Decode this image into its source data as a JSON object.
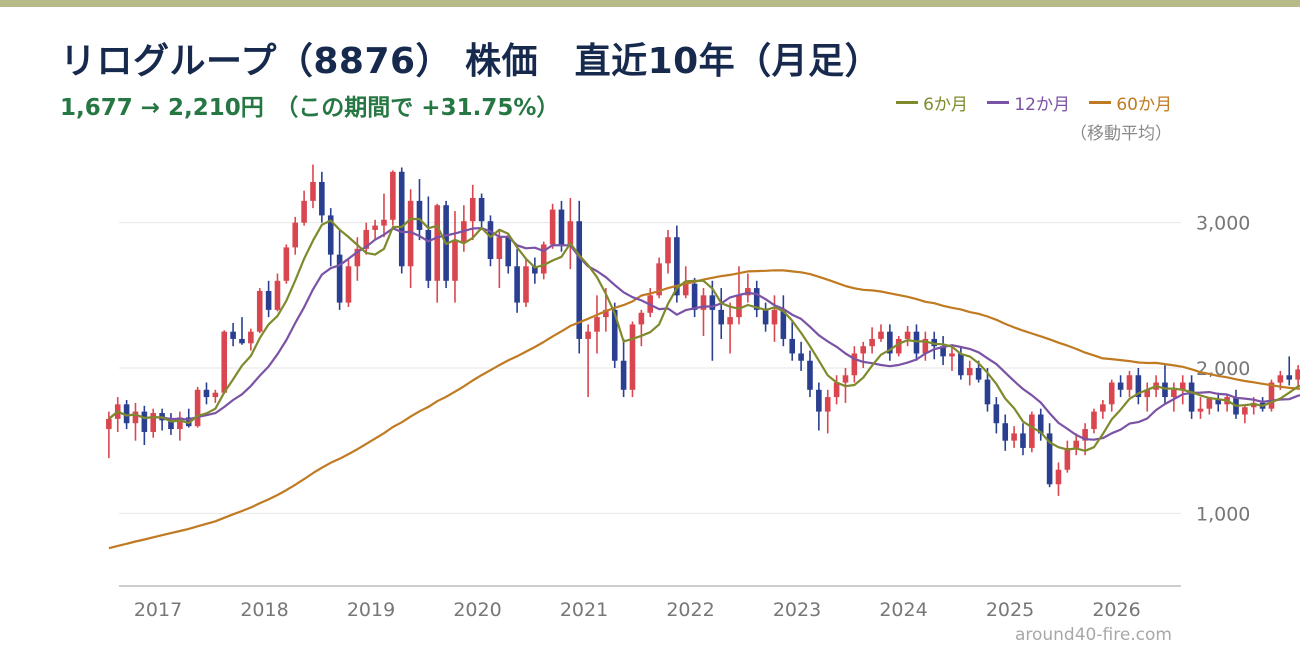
{
  "header": {
    "title": "リログループ（8876） 株価　直近10年（月足）",
    "subtitle": "1,677 → 2,210円　（この期間で +31.75%）"
  },
  "legend": {
    "items": [
      {
        "label": "6か月",
        "color": "#7f8a2c"
      },
      {
        "label": "12か月",
        "color": "#7a52a6"
      },
      {
        "label": "60か月",
        "color": "#c07a22"
      }
    ],
    "note": "（移動平均）"
  },
  "watermark": "around40-fire.com",
  "colors": {
    "up": "#d9464f",
    "down": "#2a3f8f",
    "background": "#ffffff",
    "topbar": "#b8bb88"
  },
  "chart_data": {
    "type": "candlestick",
    "title": "リログループ（8876） 株価　直近10年（月足）",
    "ylim": [
      500,
      3500
    ],
    "y_ticks": [
      1000,
      2000,
      3000
    ],
    "y_tick_labels": [
      "1,000",
      "2,000",
      "3,000"
    ],
    "x_labels": [
      "2017",
      "2018",
      "2019",
      "2020",
      "2021",
      "2022",
      "2023",
      "2024",
      "2025",
      "2026"
    ],
    "grid": true,
    "legend_placement": "top-right",
    "first_year": 2016.67,
    "candles": [
      [
        1580,
        1700,
        1380,
        1650
      ],
      [
        1650,
        1800,
        1560,
        1750
      ],
      [
        1750,
        1780,
        1580,
        1620
      ],
      [
        1620,
        1760,
        1500,
        1700
      ],
      [
        1700,
        1740,
        1470,
        1560
      ],
      [
        1560,
        1720,
        1520,
        1690
      ],
      [
        1690,
        1720,
        1570,
        1640
      ],
      [
        1640,
        1690,
        1540,
        1580
      ],
      [
        1580,
        1700,
        1500,
        1660
      ],
      [
        1660,
        1720,
        1590,
        1600
      ],
      [
        1600,
        1870,
        1590,
        1850
      ],
      [
        1850,
        1900,
        1750,
        1800
      ],
      [
        1800,
        1850,
        1760,
        1830
      ],
      [
        1830,
        2260,
        1820,
        2250
      ],
      [
        2250,
        2310,
        2150,
        2200
      ],
      [
        2200,
        2350,
        2160,
        2170
      ],
      [
        2170,
        2270,
        2120,
        2250
      ],
      [
        2250,
        2550,
        2240,
        2530
      ],
      [
        2530,
        2600,
        2350,
        2400
      ],
      [
        2400,
        2650,
        2390,
        2600
      ],
      [
        2600,
        2850,
        2580,
        2830
      ],
      [
        2830,
        3040,
        2780,
        3000
      ],
      [
        3000,
        3220,
        2980,
        3150
      ],
      [
        3150,
        3400,
        3100,
        3280
      ],
      [
        3280,
        3350,
        3000,
        3050
      ],
      [
        3050,
        3100,
        2700,
        2780
      ],
      [
        2780,
        2950,
        2400,
        2450
      ],
      [
        2450,
        2750,
        2420,
        2700
      ],
      [
        2700,
        2900,
        2600,
        2820
      ],
      [
        2820,
        3000,
        2780,
        2950
      ],
      [
        2950,
        3020,
        2880,
        2980
      ],
      [
        2980,
        3200,
        2900,
        3020
      ],
      [
        3020,
        3360,
        2980,
        3350
      ],
      [
        3350,
        3380,
        2650,
        2700
      ],
      [
        2700,
        3230,
        2550,
        3150
      ],
      [
        3150,
        3300,
        2880,
        2950
      ],
      [
        2950,
        3180,
        2550,
        2600
      ],
      [
        2600,
        3130,
        2450,
        3120
      ],
      [
        3120,
        3150,
        2550,
        2600
      ],
      [
        2600,
        3080,
        2450,
        2870
      ],
      [
        2870,
        3120,
        2800,
        3010
      ],
      [
        3010,
        3260,
        2880,
        3170
      ],
      [
        3170,
        3200,
        2950,
        3010
      ],
      [
        3010,
        3050,
        2700,
        2750
      ],
      [
        2750,
        2950,
        2550,
        2900
      ],
      [
        2900,
        2920,
        2650,
        2700
      ],
      [
        2700,
        2820,
        2380,
        2450
      ],
      [
        2450,
        2750,
        2420,
        2700
      ],
      [
        2700,
        2760,
        2580,
        2650
      ],
      [
        2650,
        2870,
        2610,
        2850
      ],
      [
        2850,
        3130,
        2820,
        3090
      ],
      [
        3090,
        3150,
        2800,
        2850
      ],
      [
        2850,
        3170,
        2680,
        3010
      ],
      [
        3010,
        3150,
        2100,
        2200
      ],
      [
        2200,
        2300,
        1800,
        2250
      ],
      [
        2250,
        2500,
        2100,
        2350
      ],
      [
        2350,
        2550,
        2250,
        2400
      ],
      [
        2400,
        2450,
        2000,
        2050
      ],
      [
        2050,
        2200,
        1800,
        1850
      ],
      [
        1850,
        2320,
        1800,
        2300
      ],
      [
        2300,
        2400,
        2150,
        2380
      ],
      [
        2380,
        2550,
        2350,
        2500
      ],
      [
        2500,
        2760,
        2480,
        2720
      ],
      [
        2720,
        2950,
        2650,
        2900
      ],
      [
        2900,
        2980,
        2450,
        2500
      ],
      [
        2500,
        2700,
        2480,
        2580
      ],
      [
        2580,
        2620,
        2350,
        2400
      ],
      [
        2400,
        2550,
        2220,
        2500
      ],
      [
        2500,
        2600,
        2050,
        2400
      ],
      [
        2400,
        2550,
        2200,
        2300
      ],
      [
        2300,
        2450,
        2100,
        2350
      ],
      [
        2350,
        2700,
        2300,
        2500
      ],
      [
        2500,
        2650,
        2450,
        2550
      ],
      [
        2550,
        2600,
        2350,
        2400
      ],
      [
        2400,
        2450,
        2250,
        2300
      ],
      [
        2300,
        2500,
        2180,
        2400
      ],
      [
        2400,
        2500,
        2150,
        2200
      ],
      [
        2200,
        2320,
        2050,
        2100
      ],
      [
        2100,
        2180,
        1980,
        2050
      ],
      [
        2050,
        2120,
        1800,
        1850
      ],
      [
        1850,
        1900,
        1570,
        1700
      ],
      [
        1700,
        1850,
        1550,
        1800
      ],
      [
        1800,
        1950,
        1750,
        1900
      ],
      [
        1900,
        2000,
        1760,
        1950
      ],
      [
        1950,
        2150,
        1900,
        2100
      ],
      [
        2100,
        2180,
        2000,
        2150
      ],
      [
        2150,
        2280,
        2100,
        2200
      ],
      [
        2200,
        2300,
        2180,
        2250
      ],
      [
        2250,
        2300,
        2050,
        2100
      ],
      [
        2100,
        2220,
        2080,
        2200
      ],
      [
        2200,
        2290,
        2150,
        2250
      ],
      [
        2250,
        2300,
        2050,
        2100
      ],
      [
        2100,
        2250,
        2050,
        2200
      ],
      [
        2200,
        2250,
        2060,
        2150
      ],
      [
        2150,
        2220,
        2020,
        2080
      ],
      [
        2080,
        2150,
        1980,
        2100
      ],
      [
        2100,
        2150,
        1920,
        1950
      ],
      [
        1950,
        2050,
        1880,
        2000
      ],
      [
        2000,
        2050,
        1900,
        1920
      ],
      [
        1920,
        2000,
        1700,
        1750
      ],
      [
        1750,
        1800,
        1550,
        1620
      ],
      [
        1620,
        1680,
        1430,
        1500
      ],
      [
        1500,
        1600,
        1450,
        1550
      ],
      [
        1550,
        1620,
        1400,
        1450
      ],
      [
        1450,
        1700,
        1420,
        1680
      ],
      [
        1680,
        1720,
        1500,
        1550
      ],
      [
        1550,
        1620,
        1180,
        1200
      ],
      [
        1200,
        1350,
        1120,
        1300
      ],
      [
        1300,
        1500,
        1280,
        1450
      ],
      [
        1450,
        1550,
        1400,
        1500
      ],
      [
        1500,
        1620,
        1400,
        1580
      ],
      [
        1580,
        1720,
        1550,
        1700
      ],
      [
        1700,
        1780,
        1650,
        1750
      ],
      [
        1750,
        1920,
        1700,
        1900
      ],
      [
        1900,
        1950,
        1800,
        1850
      ],
      [
        1850,
        1980,
        1800,
        1950
      ],
      [
        1950,
        2000,
        1750,
        1800
      ],
      [
        1800,
        1900,
        1700,
        1850
      ],
      [
        1850,
        1950,
        1800,
        1900
      ],
      [
        1900,
        2020,
        1750,
        1800
      ],
      [
        1800,
        1900,
        1700,
        1850
      ],
      [
        1850,
        1950,
        1750,
        1900
      ],
      [
        1900,
        1950,
        1650,
        1700
      ],
      [
        1700,
        1800,
        1650,
        1720
      ],
      [
        1720,
        1800,
        1680,
        1790
      ],
      [
        1790,
        1830,
        1700,
        1750
      ],
      [
        1750,
        1820,
        1700,
        1800
      ],
      [
        1800,
        1850,
        1650,
        1680
      ],
      [
        1680,
        1750,
        1620,
        1730
      ],
      [
        1730,
        1800,
        1680,
        1760
      ],
      [
        1760,
        1800,
        1700,
        1720
      ],
      [
        1720,
        1920,
        1700,
        1900
      ],
      [
        1900,
        1980,
        1850,
        1950
      ],
      [
        1950,
        2080,
        1880,
        1920
      ],
      [
        1920,
        2020,
        1870,
        1990
      ],
      [
        1990,
        2050,
        1860,
        1880
      ],
      [
        1880,
        2020,
        1820,
        2000
      ],
      [
        2000,
        2250,
        1950,
        2210
      ]
    ]
  }
}
